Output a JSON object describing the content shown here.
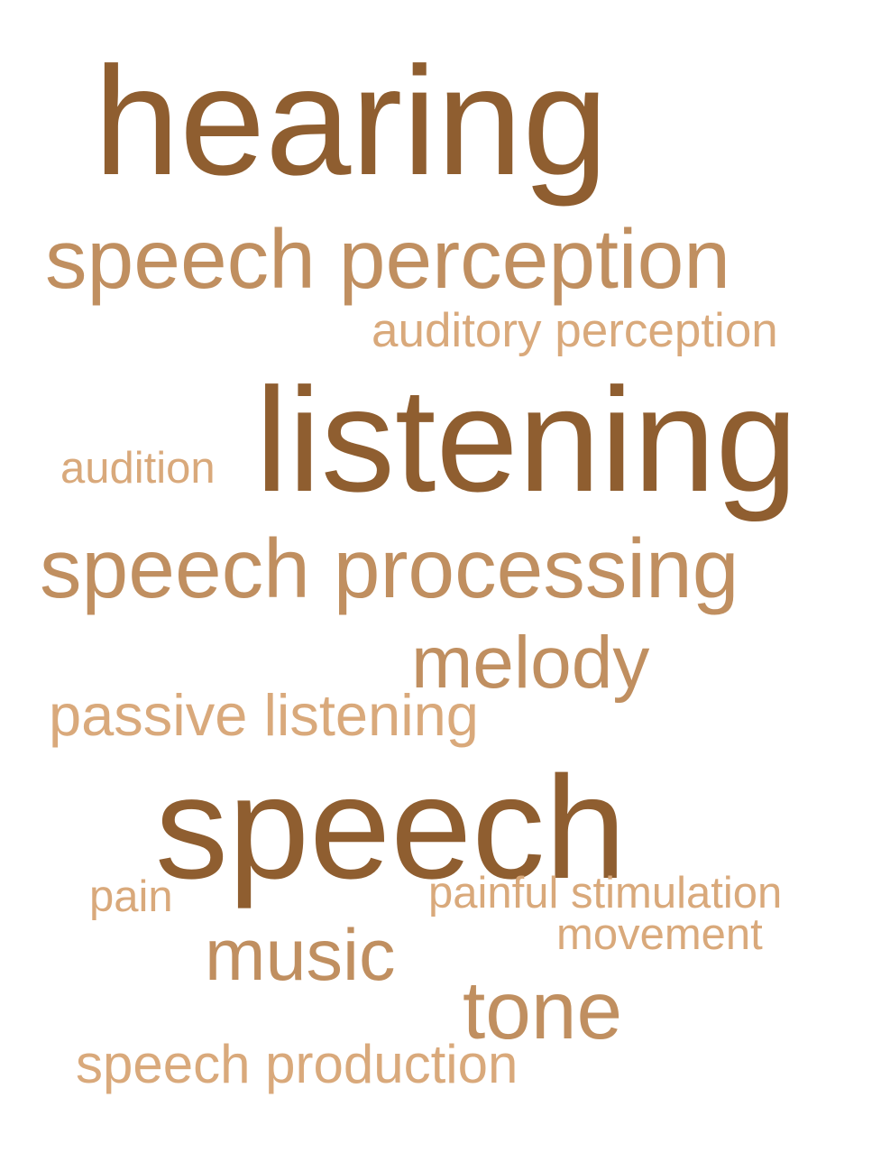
{
  "words": [
    {
      "text": "hearing",
      "color": "#8f5e30"
    },
    {
      "text": "speech perception",
      "color": "#c08f60"
    },
    {
      "text": "auditory perception",
      "color": "#d9a97b"
    },
    {
      "text": "listening",
      "color": "#8f5e30"
    },
    {
      "text": "audition",
      "color": "#d9a97b"
    },
    {
      "text": "speech processing",
      "color": "#c08f60"
    },
    {
      "text": "melody",
      "color": "#c08f60"
    },
    {
      "text": "passive listening",
      "color": "#d9a97b"
    },
    {
      "text": "speech",
      "color": "#8f5e30"
    },
    {
      "text": "pain",
      "color": "#d9a97b"
    },
    {
      "text": "painful stimulation",
      "color": "#d9a97b"
    },
    {
      "text": "movement",
      "color": "#d9a97b"
    },
    {
      "text": "music",
      "color": "#c08f60"
    },
    {
      "text": "tone",
      "color": "#c08f60"
    },
    {
      "text": "speech production",
      "color": "#d9a97b"
    }
  ]
}
